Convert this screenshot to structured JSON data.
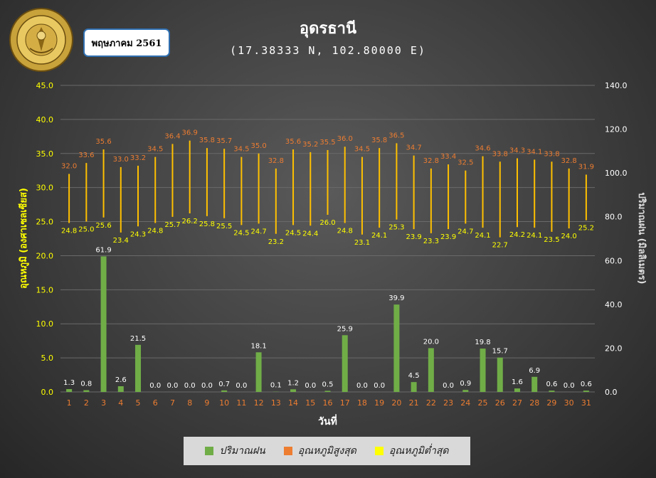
{
  "header": {
    "title": "อุดรธานี",
    "subtitle": "(17.38333 N, 102.80000 E)",
    "month_label": "พฤษภาคม 2561",
    "logo_text": "METEOROLOGICAL DEPARTMENT"
  },
  "colors": {
    "rain": "#70ad47",
    "tmax": "#ed7d31",
    "tmax_bar": "#ffc000",
    "tmin": "#ffff00",
    "axis_left": "#ffff00",
    "axis_right": "#ffffff",
    "day_labels": "#ed7d31"
  },
  "legend": {
    "rain": "ปริมาณฝน",
    "tmax": "อุณหภูมิสูงสุด",
    "tmin": "อุณหภูมิต่ำสุด"
  },
  "chart_data": {
    "type": "bar",
    "xlabel": "วันที่",
    "ylabel_left": "อุณหภูมิ (องศาเซลเซียส)",
    "ylabel_right": "ปริมาณฝน (มิลลิเมตร)",
    "ylim_left": [
      0,
      45
    ],
    "ylim_right": [
      0,
      140
    ],
    "yticks_left": [
      "0.0",
      "5.0",
      "10.0",
      "15.0",
      "20.0",
      "25.0",
      "30.0",
      "35.0",
      "40.0",
      "45.0"
    ],
    "yticks_right": [
      "0.0",
      "20.0",
      "40.0",
      "60.0",
      "80.0",
      "100.0",
      "120.0",
      "140.0"
    ],
    "grid": true,
    "legend_position": "bottom",
    "categories": [
      "1",
      "2",
      "3",
      "4",
      "5",
      "6",
      "7",
      "8",
      "9",
      "10",
      "11",
      "12",
      "13",
      "14",
      "15",
      "16",
      "17",
      "18",
      "19",
      "20",
      "21",
      "22",
      "23",
      "24",
      "25",
      "26",
      "27",
      "28",
      "29",
      "30",
      "31"
    ],
    "series": [
      {
        "name": "ปริมาณฝน",
        "axis": "right",
        "values": [
          1.3,
          0.8,
          61.9,
          2.6,
          21.5,
          0.0,
          0.0,
          0.0,
          0.0,
          0.7,
          0.0,
          18.1,
          0.1,
          1.2,
          0.0,
          0.5,
          25.9,
          0.0,
          0.0,
          39.9,
          4.5,
          20.0,
          0.0,
          0.9,
          19.8,
          15.7,
          1.6,
          6.9,
          0.6,
          0.0,
          0.6
        ]
      },
      {
        "name": "อุณหภูมิสูงสุด",
        "axis": "left",
        "values": [
          32.0,
          33.6,
          35.6,
          33.0,
          33.2,
          34.5,
          36.4,
          36.9,
          35.8,
          35.7,
          34.5,
          35.0,
          32.8,
          35.6,
          35.2,
          35.5,
          36.0,
          34.5,
          35.8,
          36.5,
          34.7,
          32.8,
          33.4,
          32.5,
          34.6,
          33.8,
          34.3,
          34.1,
          33.8,
          32.8,
          31.9
        ]
      },
      {
        "name": "อุณหภูมิต่ำสุด",
        "axis": "left",
        "values": [
          24.8,
          25.0,
          25.6,
          23.4,
          24.3,
          24.8,
          25.7,
          26.2,
          25.8,
          25.5,
          24.5,
          24.7,
          23.2,
          24.5,
          24.4,
          26.0,
          24.8,
          23.1,
          24.1,
          25.3,
          23.9,
          23.3,
          23.9,
          24.7,
          24.1,
          22.7,
          24.2,
          24.1,
          23.5,
          24.0,
          25.2
        ]
      }
    ]
  }
}
